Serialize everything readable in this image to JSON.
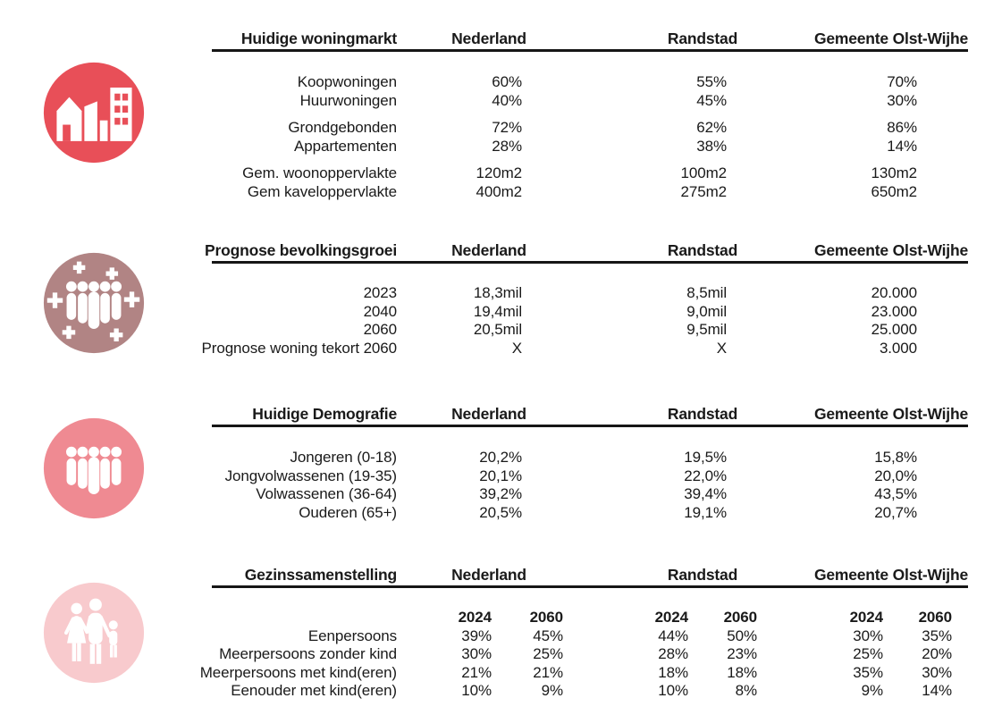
{
  "chart_data": [
    {
      "type": "table",
      "title": "Huidige woningmarkt",
      "icon": "buildings-icon",
      "icon_color": "#E84F58",
      "columns": [
        "Nederland",
        "Randstad",
        "Gemeente Olst-Wijhe"
      ],
      "groups": [
        {
          "rows": [
            {
              "label": "Koopwoningen",
              "values": [
                "60%",
                "55%",
                "70%"
              ]
            },
            {
              "label": "Huurwoningen",
              "values": [
                "40%",
                "45%",
                "30%"
              ]
            }
          ]
        },
        {
          "rows": [
            {
              "label": "Grondgebonden",
              "values": [
                "72%",
                "62%",
                "86%"
              ]
            },
            {
              "label": "Appartementen",
              "values": [
                "28%",
                "38%",
                "14%"
              ]
            }
          ]
        },
        {
          "rows": [
            {
              "label": "Gem. woonoppervlakte",
              "values": [
                "120m2",
                "100m2",
                "130m2"
              ]
            },
            {
              "label": "Gem kaveloppervlakte",
              "values": [
                "400m2",
                "275m2",
                "650m2"
              ]
            }
          ]
        }
      ]
    },
    {
      "type": "table",
      "title": "Prognose bevolkingsgroei",
      "icon": "population-growth-icon",
      "icon_color": "#B18484",
      "columns": [
        "Nederland",
        "Randstad",
        "Gemeente Olst-Wijhe"
      ],
      "groups": [
        {
          "rows": [
            {
              "label": "2023",
              "values": [
                "18,3mil",
                "8,5mil",
                "20.000"
              ]
            },
            {
              "label": "2040",
              "values": [
                "19,4mil",
                "9,0mil",
                "23.000"
              ]
            },
            {
              "label": "2060",
              "values": [
                "20,5mil",
                "9,5mil",
                "25.000"
              ]
            },
            {
              "label": "Prognose woning tekort 2060",
              "values": [
                "X",
                "X",
                "3.000"
              ]
            }
          ]
        }
      ]
    },
    {
      "type": "table",
      "title": "Huidige Demografie",
      "icon": "people-group-icon",
      "icon_color": "#EF8A92",
      "columns": [
        "Nederland",
        "Randstad",
        "Gemeente Olst-Wijhe"
      ],
      "groups": [
        {
          "rows": [
            {
              "label": "Jongeren (0-18)",
              "values": [
                "20,2%",
                "19,5%",
                "15,8%"
              ]
            },
            {
              "label": "Jongvolwassenen (19-35)",
              "values": [
                "20,1%",
                "22,0%",
                "20,0%"
              ]
            },
            {
              "label": "Volwassenen (36-64)",
              "values": [
                "39,2%",
                "39,4%",
                "43,5%"
              ]
            },
            {
              "label": "Ouderen (65+)",
              "values": [
                "20,5%",
                "19,1%",
                "20,7%"
              ]
            }
          ]
        }
      ]
    },
    {
      "type": "table",
      "title": "Gezinssamenstelling",
      "icon": "family-icon",
      "icon_color": "#F8CACD",
      "columns": [
        "Nederland",
        "Randstad",
        "Gemeente Olst-Wijhe"
      ],
      "year_headers": [
        "2024",
        "2060",
        "2024",
        "2060",
        "2024",
        "2060"
      ],
      "groups": [
        {
          "rows": [
            {
              "label": "Eenpersoons",
              "values": [
                "39%",
                "45%",
                "44%",
                "50%",
                "30%",
                "35%"
              ]
            },
            {
              "label": "Meerpersoons zonder kind",
              "values": [
                "30%",
                "25%",
                "28%",
                "23%",
                "25%",
                "20%"
              ]
            },
            {
              "label": "Meerpersoons met kind(eren)",
              "values": [
                "21%",
                "21%",
                "18%",
                "18%",
                "35%",
                "30%"
              ]
            },
            {
              "label": "Eenouder met kind(eren)",
              "values": [
                "10%",
                "9%",
                "10%",
                "8%",
                "9%",
                "14%"
              ]
            }
          ]
        }
      ]
    }
  ]
}
